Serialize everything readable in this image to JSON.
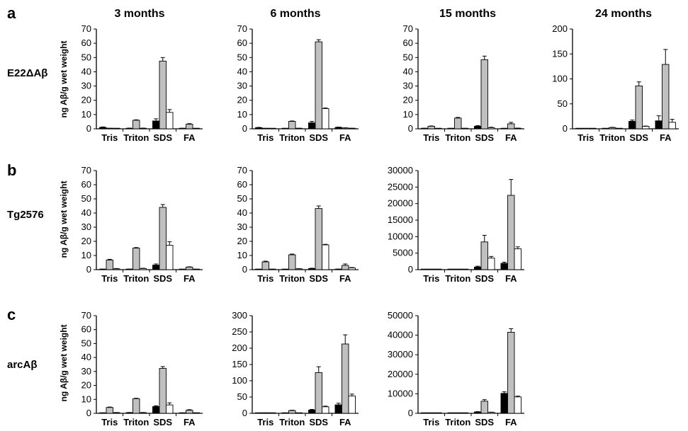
{
  "columns": [
    "3 months",
    "6 months",
    "15 months",
    "24 months"
  ],
  "rows": [
    {
      "letter": "a",
      "model": "E22ΔAβ"
    },
    {
      "letter": "b",
      "model": "Tg2576"
    },
    {
      "letter": "c",
      "model": "arcAβ"
    }
  ],
  "ylabel": "ng Aβ/g wet weight",
  "categories": [
    "Tris",
    "Triton",
    "SDS",
    "FA"
  ],
  "colors": {
    "bar1": "#000000",
    "bar2": "#c0c0c0",
    "bar3": "#ffffff",
    "stroke": "#000000"
  },
  "chart_data": [
    {
      "type": "bar",
      "row": "a",
      "column": "3 months",
      "categories": [
        "Tris",
        "Triton",
        "SDS",
        "FA"
      ],
      "ylim": [
        0,
        70
      ],
      "yticks": [
        0,
        10,
        20,
        30,
        40,
        50,
        60,
        70
      ],
      "series": [
        {
          "values": [
            1.0,
            0.4,
            5.5,
            0.3
          ],
          "errors": [
            0.3,
            0.1,
            1.5,
            0.1
          ]
        },
        {
          "values": [
            0.3,
            6.0,
            47.5,
            3.2
          ],
          "errors": [
            0.1,
            0.3,
            2.5,
            0.4
          ]
        },
        {
          "values": [
            0.2,
            0.4,
            11.5,
            0.2
          ],
          "errors": [
            0.1,
            0.1,
            2.0,
            0.1
          ]
        }
      ]
    },
    {
      "type": "bar",
      "row": "a",
      "column": "6 months",
      "categories": [
        "Tris",
        "Triton",
        "SDS",
        "FA"
      ],
      "ylim": [
        0,
        70
      ],
      "yticks": [
        0,
        10,
        20,
        30,
        40,
        50,
        60,
        70
      ],
      "series": [
        {
          "values": [
            0.8,
            0.2,
            4.2,
            1.0
          ],
          "errors": [
            0.2,
            0.1,
            1.0,
            0.2
          ]
        },
        {
          "values": [
            0.2,
            5.2,
            61,
            0.6
          ],
          "errors": [
            0.1,
            0.3,
            1.5,
            0.1
          ]
        },
        {
          "values": [
            0.1,
            0.3,
            14.2,
            0.3
          ],
          "errors": [
            0.1,
            0.1,
            0.4,
            0.1
          ]
        }
      ]
    },
    {
      "type": "bar",
      "row": "a",
      "column": "15 months",
      "categories": [
        "Tris",
        "Triton",
        "SDS",
        "FA"
      ],
      "ylim": [
        0,
        70
      ],
      "yticks": [
        0,
        10,
        20,
        30,
        40,
        50,
        60,
        70
      ],
      "series": [
        {
          "values": [
            0.3,
            0.2,
            1.8,
            0.2
          ],
          "errors": [
            0.1,
            0.1,
            0.4,
            0.1
          ]
        },
        {
          "values": [
            1.8,
            7.5,
            48.5,
            3.5
          ],
          "errors": [
            0.2,
            0.5,
            2.5,
            1.0
          ]
        },
        {
          "values": [
            0.1,
            0.2,
            0.8,
            0.4
          ],
          "errors": [
            0.1,
            0.1,
            0.3,
            0.1
          ]
        }
      ]
    },
    {
      "type": "bar",
      "row": "a",
      "column": "24 months",
      "categories": [
        "Tris",
        "Triton",
        "SDS",
        "FA"
      ],
      "ylim": [
        0,
        200
      ],
      "yticks": [
        0,
        50,
        100,
        150,
        200
      ],
      "series": [
        {
          "values": [
            0.5,
            0.5,
            15,
            16
          ],
          "errors": [
            0.2,
            0.2,
            2.5,
            10
          ]
        },
        {
          "values": [
            0.5,
            2.5,
            86,
            129
          ],
          "errors": [
            0.2,
            0.5,
            8,
            30
          ]
        },
        {
          "values": [
            0.5,
            0.5,
            5,
            13
          ],
          "errors": [
            0.2,
            0.2,
            0.5,
            6
          ]
        }
      ]
    },
    {
      "type": "bar",
      "row": "b",
      "column": "3 months",
      "categories": [
        "Tris",
        "Triton",
        "SDS",
        "FA"
      ],
      "ylim": [
        0,
        70
      ],
      "yticks": [
        0,
        10,
        20,
        30,
        40,
        50,
        60,
        70
      ],
      "series": [
        {
          "values": [
            0.3,
            0.3,
            3.2,
            0.2
          ],
          "errors": [
            0.1,
            0.1,
            0.8,
            0.1
          ]
        },
        {
          "values": [
            6.8,
            15.2,
            44,
            1.8
          ],
          "errors": [
            0.5,
            0.4,
            2.0,
            0.2
          ]
        },
        {
          "values": [
            0.6,
            0.8,
            17.2,
            0.2
          ],
          "errors": [
            0.2,
            0.2,
            2.5,
            0.1
          ]
        }
      ]
    },
    {
      "type": "bar",
      "row": "b",
      "column": "6 months",
      "categories": [
        "Tris",
        "Triton",
        "SDS",
        "FA"
      ],
      "ylim": [
        0,
        70
      ],
      "yticks": [
        0,
        10,
        20,
        30,
        40,
        50,
        60,
        70
      ],
      "series": [
        {
          "values": [
            0.2,
            0.2,
            0.8,
            0.3
          ],
          "errors": [
            0.1,
            0.1,
            0.2,
            0.1
          ]
        },
        {
          "values": [
            5.5,
            10.5,
            43.2,
            3.0
          ],
          "errors": [
            0.5,
            0.5,
            1.8,
            1.0
          ]
        },
        {
          "values": [
            0.2,
            0.6,
            17.5,
            1.2
          ],
          "errors": [
            0.1,
            0.1,
            0.4,
            0.3
          ]
        }
      ]
    },
    {
      "type": "bar",
      "row": "b",
      "column": "15 months",
      "categories": [
        "Tris",
        "Triton",
        "SDS",
        "FA"
      ],
      "ylim": [
        0,
        30000
      ],
      "yticks": [
        0,
        5000,
        10000,
        15000,
        20000,
        25000,
        30000
      ],
      "series": [
        {
          "values": [
            30,
            30,
            800,
            1900
          ],
          "errors": [
            10,
            10,
            250,
            350
          ]
        },
        {
          "values": [
            60,
            80,
            8400,
            22500
          ],
          "errors": [
            15,
            20,
            2000,
            4800
          ]
        },
        {
          "values": [
            30,
            30,
            3500,
            6300
          ],
          "errors": [
            10,
            10,
            500,
            600
          ]
        }
      ]
    },
    {
      "type": "bar",
      "row": "c",
      "column": "3 months",
      "categories": [
        "Tris",
        "Triton",
        "SDS",
        "FA"
      ],
      "ylim": [
        0,
        70
      ],
      "yticks": [
        0,
        10,
        20,
        30,
        40,
        50,
        60,
        70
      ],
      "series": [
        {
          "values": [
            0.2,
            0.5,
            4.8,
            0.2
          ],
          "errors": [
            0.1,
            0.1,
            0.6,
            0.1
          ]
        },
        {
          "values": [
            4.2,
            10.5,
            32.2,
            2.2
          ],
          "errors": [
            0.3,
            0.3,
            1.3,
            0.4
          ]
        },
        {
          "values": [
            0.5,
            0.5,
            6.0,
            0.2
          ],
          "errors": [
            0.1,
            0.1,
            1.5,
            0.1
          ]
        }
      ]
    },
    {
      "type": "bar",
      "row": "c",
      "column": "6 months",
      "categories": [
        "Tris",
        "Triton",
        "SDS",
        "FA"
      ],
      "ylim": [
        0,
        300
      ],
      "yticks": [
        0,
        50,
        100,
        150,
        200,
        250,
        300
      ],
      "series": [
        {
          "values": [
            0.5,
            0.5,
            10,
            26
          ],
          "errors": [
            0.2,
            0.2,
            2,
            5
          ]
        },
        {
          "values": [
            1,
            8.5,
            125,
            213
          ],
          "errors": [
            0.3,
            1,
            18,
            28
          ]
        },
        {
          "values": [
            0.5,
            0.5,
            20,
            53
          ],
          "errors": [
            0.2,
            0.2,
            2,
            6
          ]
        }
      ]
    },
    {
      "type": "bar",
      "row": "c",
      "column": "15 months",
      "categories": [
        "Tris",
        "Triton",
        "SDS",
        "FA"
      ],
      "ylim": [
        0,
        50000
      ],
      "yticks": [
        0,
        10000,
        20000,
        30000,
        40000,
        50000
      ],
      "series": [
        {
          "values": [
            30,
            30,
            700,
            10200
          ],
          "errors": [
            10,
            10,
            150,
            800
          ]
        },
        {
          "values": [
            60,
            80,
            6200,
            41500
          ],
          "errors": [
            15,
            20,
            800,
            1800
          ]
        },
        {
          "values": [
            30,
            30,
            500,
            8400
          ],
          "errors": [
            10,
            10,
            100,
            400
          ]
        }
      ]
    }
  ]
}
